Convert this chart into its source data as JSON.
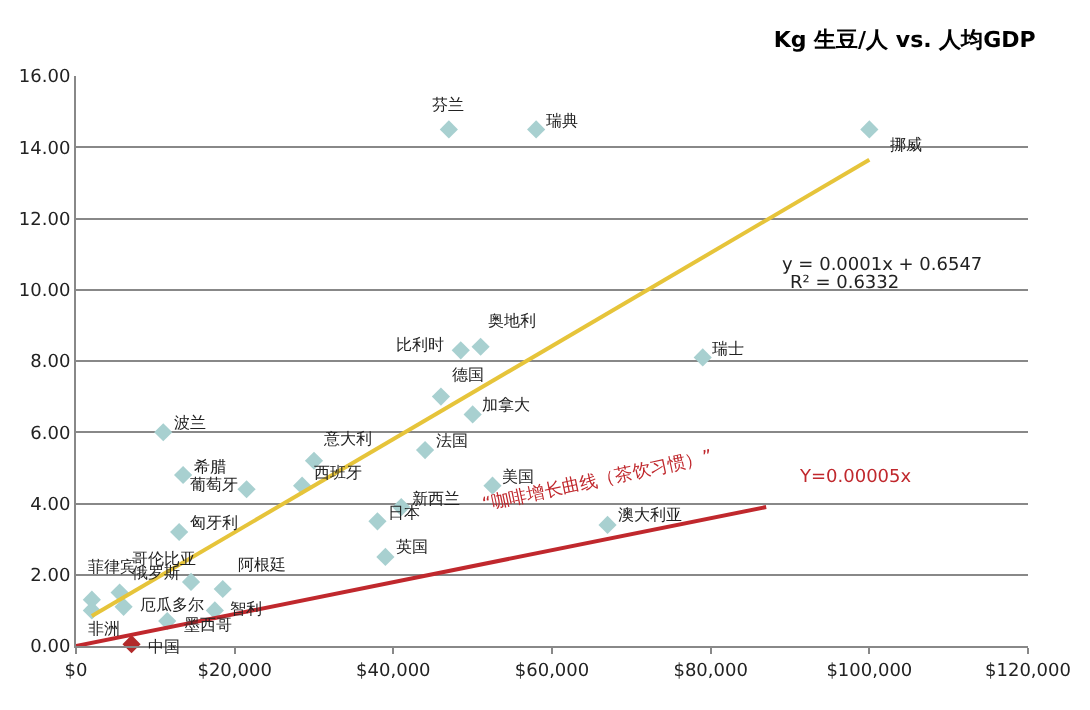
{
  "chart_data": {
    "type": "scatter",
    "title": "Kg 生豆/人 vs. 人均GDP",
    "xlim": [
      0,
      120000
    ],
    "xticks": [
      {
        "value": 0,
        "label": "$0"
      },
      {
        "value": 20000,
        "label": "$20,000"
      },
      {
        "value": 40000,
        "label": "$40,000"
      },
      {
        "value": 60000,
        "label": "$60,000"
      },
      {
        "value": 80000,
        "label": "$80,000"
      },
      {
        "value": 100000,
        "label": "$100,000"
      },
      {
        "value": 120000,
        "label": "$120,000"
      }
    ],
    "ylim": [
      0,
      16
    ],
    "yticks": [
      {
        "value": 0,
        "label": "0.00"
      },
      {
        "value": 2,
        "label": "2.00"
      },
      {
        "value": 4,
        "label": "4.00"
      },
      {
        "value": 6,
        "label": "6.00"
      },
      {
        "value": 8,
        "label": "8.00"
      },
      {
        "value": 10,
        "label": "10.00"
      },
      {
        "value": 12,
        "label": "12.00"
      },
      {
        "value": 14,
        "label": "14.00"
      },
      {
        "value": 16,
        "label": "16.00"
      }
    ],
    "grid": "y",
    "marker": "diamond",
    "series": [
      {
        "type": "scatter",
        "x": [
          47000,
          58000,
          100000,
          67000,
          52500,
          39000,
          38000,
          41000,
          28500,
          30000,
          21500,
          13500,
          13000,
          14500,
          11000,
          5500,
          2000,
          2000,
          6000,
          7000,
          11500,
          17500,
          18500,
          51000,
          48500,
          46000,
          79000,
          50000,
          44000
        ],
        "values": [
          14.5,
          14.5,
          14.5,
          3.4,
          4.5,
          2.5,
          3.5,
          3.9,
          4.5,
          5.2,
          4.4,
          4.8,
          3.2,
          1.8,
          6.0,
          1.5,
          1.3,
          1.0,
          1.1,
          0.05,
          0.7,
          1.0,
          1.6,
          8.4,
          8.3,
          7.0,
          8.1,
          6.5,
          5.5
        ],
        "colors": [
          "#a8d0d0",
          "#a8d0d0",
          "#a8d0d0",
          "#a8d0d0",
          "#a8d0d0",
          "#a8d0d0",
          "#a8d0d0",
          "#a8d0d0",
          "#a8d0d0",
          "#a8d0d0",
          "#a8d0d0",
          "#a8d0d0",
          "#a8d0d0",
          "#a8d0d0",
          "#a8d0d0",
          "#a8d0d0",
          "#a8d0d0",
          "#a8d0d0",
          "#a8d0d0",
          "#b22a2a",
          "#a8d0d0",
          "#a8d0d0",
          "#a8d0d0",
          "#a8d0d0",
          "#a8d0d0",
          "#a8d0d0",
          "#a8d0d0",
          "#a8d0d0",
          "#a8d0d0"
        ]
      },
      {
        "type": "line",
        "marker": "none",
        "color": "#e6c43a",
        "x": [
          2000,
          100000
        ],
        "values": [
          0.84,
          13.65
        ]
      },
      {
        "type": "line",
        "marker": "none",
        "color": "#c0282d",
        "x": [
          0,
          87000
        ],
        "values": [
          0,
          3.9
        ]
      }
    ],
    "annotations": [
      {
        "text": "芬兰",
        "x": 47000,
        "y": 14.5
      },
      {
        "text": "瑞典",
        "x": 58000,
        "y": 14.5
      },
      {
        "text": "挪威",
        "x": 100000,
        "y": 14.5
      },
      {
        "text": "澳大利亚",
        "x": 67000,
        "y": 3.4
      },
      {
        "text": "美国",
        "x": 52500,
        "y": 4.5
      },
      {
        "text": "英国",
        "x": 39000,
        "y": 2.5
      },
      {
        "text": "日本",
        "x": 38000,
        "y": 3.5
      },
      {
        "text": "新西兰",
        "x": 41000,
        "y": 3.9
      },
      {
        "text": "西班牙",
        "x": 28500,
        "y": 4.5
      },
      {
        "text": "意大利",
        "x": 30000,
        "y": 5.2
      },
      {
        "text": "葡萄牙",
        "x": 21500,
        "y": 4.4
      },
      {
        "text": "希腊",
        "x": 13500,
        "y": 4.8
      },
      {
        "text": "匈牙利",
        "x": 13000,
        "y": 3.2
      },
      {
        "text": "俄罗斯",
        "x": 14500,
        "y": 1.8
      },
      {
        "text": "波兰",
        "x": 11000,
        "y": 6.0
      },
      {
        "text": "哥伦比亚",
        "x": 5500,
        "y": 1.5
      },
      {
        "text": "菲律宾",
        "x": 2000,
        "y": 1.3
      },
      {
        "text": "非洲",
        "x": 2000,
        "y": 1.0
      },
      {
        "text": "厄瓜多尔",
        "x": 6000,
        "y": 1.1
      },
      {
        "text": "中国",
        "x": 7000,
        "y": 0.05
      },
      {
        "text": "墨西哥",
        "x": 11500,
        "y": 0.7
      },
      {
        "text": "智利",
        "x": 17500,
        "y": 1.0
      },
      {
        "text": "阿根廷",
        "x": 18500,
        "y": 1.6
      },
      {
        "text": "奥地利",
        "x": 51000,
        "y": 8.4
      },
      {
        "text": "比利时",
        "x": 48500,
        "y": 8.3
      },
      {
        "text": "德国",
        "x": 46000,
        "y": 7.0
      },
      {
        "text": "瑞士",
        "x": 79000,
        "y": 8.1
      },
      {
        "text": "加拿大",
        "x": 50000,
        "y": 6.5
      },
      {
        "text": "法国",
        "x": 44000,
        "y": 5.5
      },
      "y = 0.0001x + 0.6547",
      "R² = 0.6332",
      "“咖啡增长曲线（茶饮习惯）”",
      "Y=0.00005x"
    ]
  }
}
